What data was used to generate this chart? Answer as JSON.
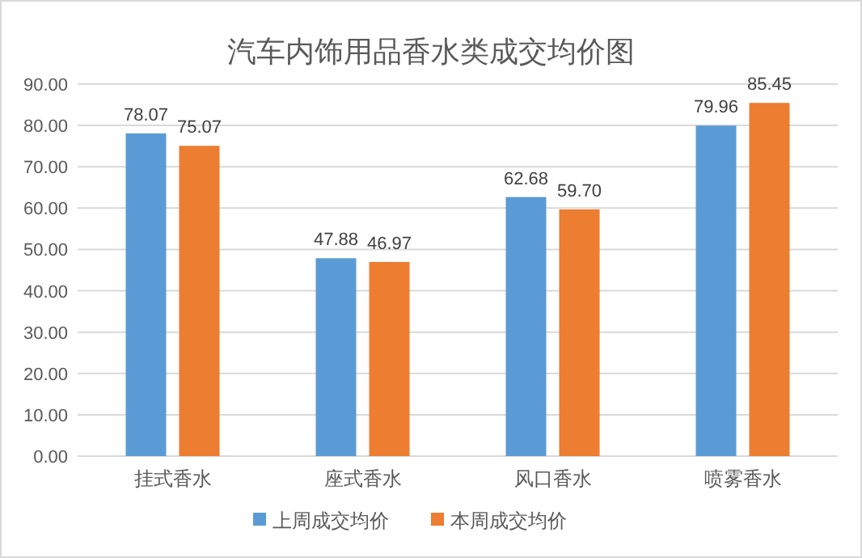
{
  "chart_data": {
    "type": "bar",
    "title": "汽车内饰用品香水类成交均价图",
    "categories": [
      "挂式香水",
      "座式香水",
      "风口香水",
      "喷雾香水"
    ],
    "series": [
      {
        "name": "上周成交均价",
        "color": "#5b9bd5",
        "values": [
          78.07,
          47.88,
          62.68,
          79.96
        ],
        "value_labels": [
          "78.07",
          "47.88",
          "62.68",
          "79.96"
        ]
      },
      {
        "name": "本周成交均价",
        "color": "#ed7d31",
        "values": [
          75.07,
          46.97,
          59.7,
          85.45
        ],
        "value_labels": [
          "75.07",
          "46.97",
          "59.70",
          "85.45"
        ]
      }
    ],
    "ylim": [
      0,
      90
    ],
    "yticks": [
      {
        "value": 0,
        "label": "0.00"
      },
      {
        "value": 10,
        "label": "10.00"
      },
      {
        "value": 20,
        "label": "20.00"
      },
      {
        "value": 30,
        "label": "30.00"
      },
      {
        "value": 40,
        "label": "40.00"
      },
      {
        "value": 50,
        "label": "50.00"
      },
      {
        "value": 60,
        "label": "60.00"
      },
      {
        "value": 70,
        "label": "70.00"
      },
      {
        "value": 80,
        "label": "80.00"
      },
      {
        "value": 90,
        "label": "90.00"
      }
    ],
    "grid": "y",
    "legend": "bottom"
  }
}
